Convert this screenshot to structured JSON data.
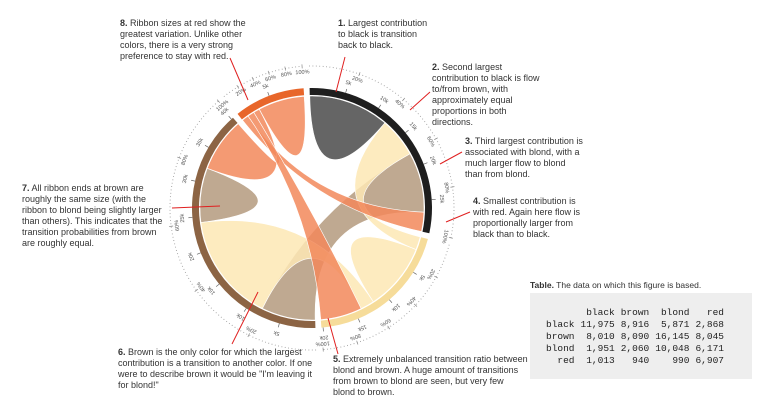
{
  "chart_data": {
    "type": "chord",
    "groups": [
      "black",
      "brown",
      "blond",
      "red"
    ],
    "colors": [
      "#1e1e1e",
      "#8c6444",
      "#f6dc9a",
      "#e8662a"
    ],
    "ribbon_colors": [
      "#4a4a4a",
      "#b49a7e",
      "#fde7b4",
      "#f2885a"
    ],
    "matrix": [
      [
        11975,
        8916,
        5871,
        2868
      ],
      [
        8010,
        8090,
        16145,
        8045
      ],
      [
        1951,
        2060,
        10048,
        6171
      ],
      [
        1013,
        940,
        990,
        6907
      ]
    ],
    "value_labels": [
      [
        "11,975",
        "8,916",
        "5,871",
        "2,868"
      ],
      [
        "8,010",
        "8,090",
        "16,145",
        "8,045"
      ],
      [
        "1,951",
        "2,060",
        "10,048",
        "6,171"
      ],
      [
        "1,013",
        "940",
        "990",
        "6,907"
      ]
    ],
    "ring_ticks": [
      {
        "value": 5000,
        "label": "5k"
      },
      {
        "value": 10000,
        "label": "10k"
      },
      {
        "value": 15000,
        "label": "15k"
      },
      {
        "value": 20000,
        "label": "20k"
      },
      {
        "value": 25000,
        "label": "25k"
      },
      {
        "value": 30000,
        "label": "30k"
      },
      {
        "value": 35000,
        "label": "35k"
      },
      {
        "value": 40000,
        "label": "40k"
      }
    ],
    "percent_ticks": [
      {
        "value": 20,
        "label": "20%"
      },
      {
        "value": 40,
        "label": "40%"
      },
      {
        "value": 60,
        "label": "60%"
      },
      {
        "value": 80,
        "label": "80%"
      },
      {
        "value": 100,
        "label": "100%"
      }
    ]
  },
  "annotations": [
    {
      "number": "1.",
      "text": "Largest contribution to black is transition back to black."
    },
    {
      "number": "2.",
      "text": "Second largest contribution to black is flow to/from brown, with approximately equal proportions in both directions."
    },
    {
      "number": "3.",
      "text": "Third largest contribution is associated with blond, with a much larger flow to blond than from blond."
    },
    {
      "number": "4.",
      "text": "Smallest contribution is with red. Again here flow is proportionally larger from black than to black."
    },
    {
      "number": "5.",
      "text": "Extremely unbalanced transition ratio between blond and brown. A huge amount of transitions from brown to blond are seen, but very few blond to brown."
    },
    {
      "number": "6.",
      "text": "Brown is the only color for which the largest contribution is a transition to another color. If one were to describe brown it would be \"I'm leaving it for blond!\""
    },
    {
      "number": "7.",
      "text": "All ribbon ends at brown are roughly the same size (with the ribbon to blond being slightly larger than others). This indicates that the transition probabilities from brown are roughly equal."
    },
    {
      "number": "8.",
      "text": "Ribbon sizes at red show the greatest variation. Unlike other colors, there is a very strong preference to stay with red."
    }
  ],
  "table": {
    "label": "Table.",
    "caption": "The data on which this figure is based."
  }
}
